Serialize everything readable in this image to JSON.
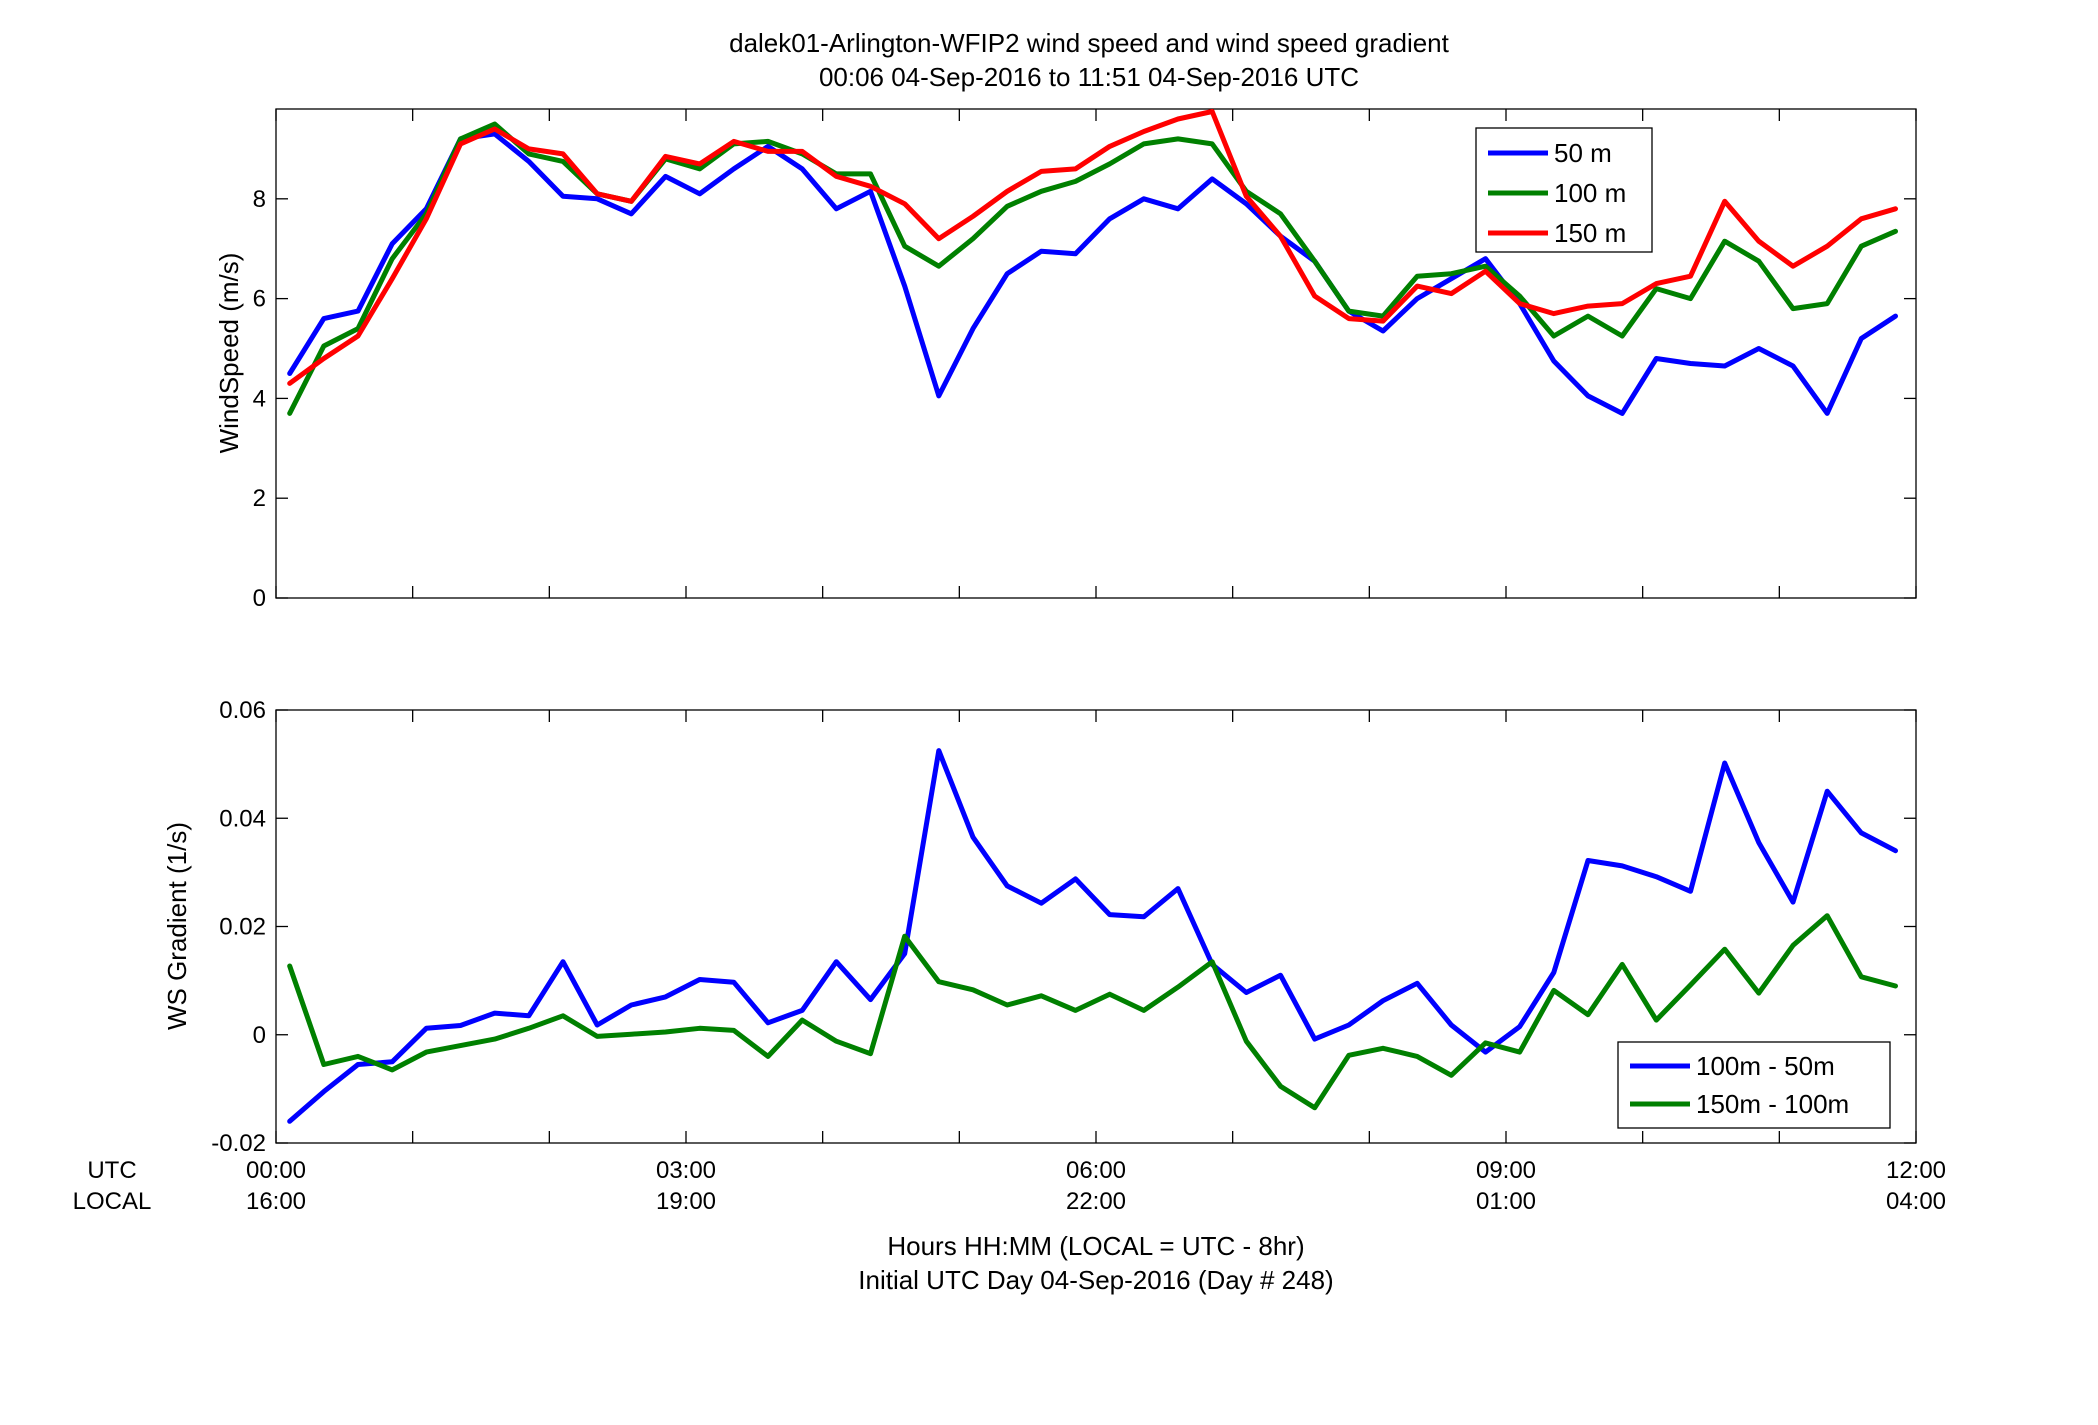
{
  "title_line1": "dalek01-Arlington-WFIP2  wind speed and wind speed gradient",
  "title_line2": "00:06 04-Sep-2016 to 11:51 04-Sep-2016  UTC",
  "xlabel_line1": "Hours HH:MM  (LOCAL = UTC - 8hr)",
  "xlabel_line2": "Initial UTC Day 04-Sep-2016 (Day # 248)",
  "row_labels": {
    "utc": "UTC",
    "local": "LOCAL"
  },
  "colors": {
    "blue": "#0000ff",
    "green": "#008000",
    "red": "#ff0000"
  },
  "chart_data": [
    {
      "type": "line",
      "ylabel": "WindSpeed (m/s)",
      "xlim": [
        0,
        12
      ],
      "ylim": [
        0,
        9.8
      ],
      "yticks": [
        0,
        2,
        4,
        6,
        8
      ],
      "ytick_labels": [
        "0",
        "2",
        "4",
        "6",
        "8"
      ],
      "xticks": [
        0,
        3,
        6,
        9,
        12
      ],
      "xtick_labels_utc": [
        "00:00",
        "03:00",
        "06:00",
        "09:00",
        "12:00"
      ],
      "xtick_labels_local": [
        "16:00",
        "19:00",
        "22:00",
        "01:00",
        "04:00"
      ],
      "legend_position": "top-right",
      "x": [
        0.1,
        0.35,
        0.6,
        0.85,
        1.1,
        1.35,
        1.6,
        1.85,
        2.1,
        2.35,
        2.6,
        2.85,
        3.1,
        3.35,
        3.6,
        3.85,
        4.1,
        4.35,
        4.6,
        4.85,
        5.1,
        5.35,
        5.6,
        5.85,
        6.1,
        6.35,
        6.6,
        6.85,
        7.1,
        7.35,
        7.6,
        7.85,
        8.1,
        8.35,
        8.6,
        8.85,
        9.1,
        9.35,
        9.6,
        9.85,
        10.1,
        10.35,
        10.6,
        10.85,
        11.1,
        11.35,
        11.6,
        11.85
      ],
      "series": [
        {
          "name": "50 m",
          "color": "#0000ff",
          "values": [
            4.5,
            5.6,
            5.75,
            7.1,
            7.8,
            9.2,
            9.3,
            8.75,
            8.05,
            8.0,
            7.7,
            8.45,
            8.1,
            8.6,
            9.05,
            8.6,
            7.8,
            8.15,
            6.25,
            4.05,
            5.4,
            6.5,
            6.95,
            6.9,
            7.6,
            8.0,
            7.8,
            8.4,
            7.9,
            7.25,
            6.75,
            5.75,
            5.35,
            6.0,
            6.4,
            6.8,
            5.9,
            4.75,
            4.05,
            3.7,
            4.8,
            4.7,
            4.65,
            5.0,
            4.65,
            3.7,
            5.2,
            5.65
          ]
        },
        {
          "name": "100 m",
          "color": "#008000",
          "values": [
            3.7,
            5.05,
            5.4,
            6.8,
            7.7,
            9.2,
            9.5,
            8.9,
            8.75,
            8.1,
            7.95,
            8.8,
            8.6,
            9.1,
            9.15,
            8.9,
            8.5,
            8.5,
            7.05,
            6.65,
            7.2,
            7.85,
            8.15,
            8.35,
            8.7,
            9.1,
            9.2,
            9.1,
            8.15,
            7.7,
            6.75,
            5.75,
            5.65,
            6.45,
            6.5,
            6.65,
            6.05,
            5.25,
            5.65,
            5.25,
            6.2,
            6.0,
            7.15,
            6.75,
            5.8,
            5.9,
            7.05,
            7.35
          ]
        },
        {
          "name": "150 m",
          "color": "#ff0000",
          "values": [
            4.3,
            4.8,
            5.25,
            6.4,
            7.6,
            9.1,
            9.4,
            9.0,
            8.9,
            8.1,
            7.95,
            8.85,
            8.7,
            9.15,
            8.95,
            8.95,
            8.45,
            8.25,
            7.9,
            7.2,
            7.65,
            8.15,
            8.55,
            8.6,
            9.05,
            9.35,
            9.6,
            9.75,
            8.05,
            7.25,
            6.05,
            5.6,
            5.55,
            6.25,
            6.1,
            6.55,
            5.9,
            5.7,
            5.85,
            5.9,
            6.3,
            6.45,
            7.95,
            7.15,
            6.65,
            7.05,
            7.6,
            7.8
          ]
        }
      ]
    },
    {
      "type": "line",
      "ylabel": "WS Gradient (1/s)",
      "xlim": [
        0,
        12
      ],
      "ylim": [
        -0.02,
        0.06
      ],
      "yticks": [
        -0.02,
        0,
        0.02,
        0.04,
        0.06
      ],
      "ytick_labels": [
        "-0.02",
        "0",
        "0.02",
        "0.04",
        "0.06"
      ],
      "xticks": [
        0,
        3,
        6,
        9,
        12
      ],
      "legend_position": "bottom-right",
      "x": [
        0.1,
        0.35,
        0.6,
        0.85,
        1.1,
        1.35,
        1.6,
        1.85,
        2.1,
        2.35,
        2.6,
        2.85,
        3.1,
        3.35,
        3.6,
        3.85,
        4.1,
        4.35,
        4.6,
        4.85,
        5.1,
        5.35,
        5.6,
        5.85,
        6.1,
        6.35,
        6.6,
        6.85,
        7.1,
        7.35,
        7.6,
        7.85,
        8.1,
        8.35,
        8.6,
        8.85,
        9.1,
        9.35,
        9.6,
        9.85,
        10.1,
        10.35,
        10.6,
        10.85,
        11.1,
        11.35,
        11.6,
        11.85
      ],
      "series": [
        {
          "name": "100m - 50m",
          "color": "#0000ff",
          "values": [
            -0.016,
            -0.0105,
            -0.0055,
            -0.005,
            0.0012,
            0.0017,
            0.004,
            0.0035,
            0.0135,
            0.0018,
            0.0055,
            0.007,
            0.0102,
            0.0097,
            0.0022,
            0.0045,
            0.0135,
            0.0065,
            0.015,
            0.0525,
            0.0365,
            0.0275,
            0.0243,
            0.0288,
            0.0222,
            0.0218,
            0.027,
            0.013,
            0.0078,
            0.011,
            -0.0008,
            0.0018,
            0.0063,
            0.0095,
            0.0018,
            -0.0032,
            0.0015,
            0.0115,
            0.0322,
            0.0312,
            0.0292,
            0.0265,
            0.0502,
            0.0355,
            0.0245,
            0.045,
            0.0373,
            0.034
          ]
        },
        {
          "name": "150m - 100m",
          "color": "#008000",
          "values": [
            0.0127,
            -0.0055,
            -0.004,
            -0.0065,
            -0.0032,
            -0.002,
            -0.0008,
            0.0012,
            0.0035,
            -0.0003,
            0.0001,
            0.0005,
            0.0012,
            0.0008,
            -0.004,
            0.0027,
            -0.0012,
            -0.0035,
            0.0182,
            0.0098,
            0.0083,
            0.0055,
            0.0072,
            0.0045,
            0.0075,
            0.0045,
            0.0088,
            0.0135,
            -0.0012,
            -0.0095,
            -0.0135,
            -0.0038,
            -0.0025,
            -0.004,
            -0.0075,
            -0.0015,
            -0.0032,
            0.0082,
            0.0037,
            0.013,
            0.0027,
            0.0092,
            0.0158,
            0.0077,
            0.0165,
            0.022,
            0.0107,
            0.009
          ]
        }
      ]
    }
  ]
}
